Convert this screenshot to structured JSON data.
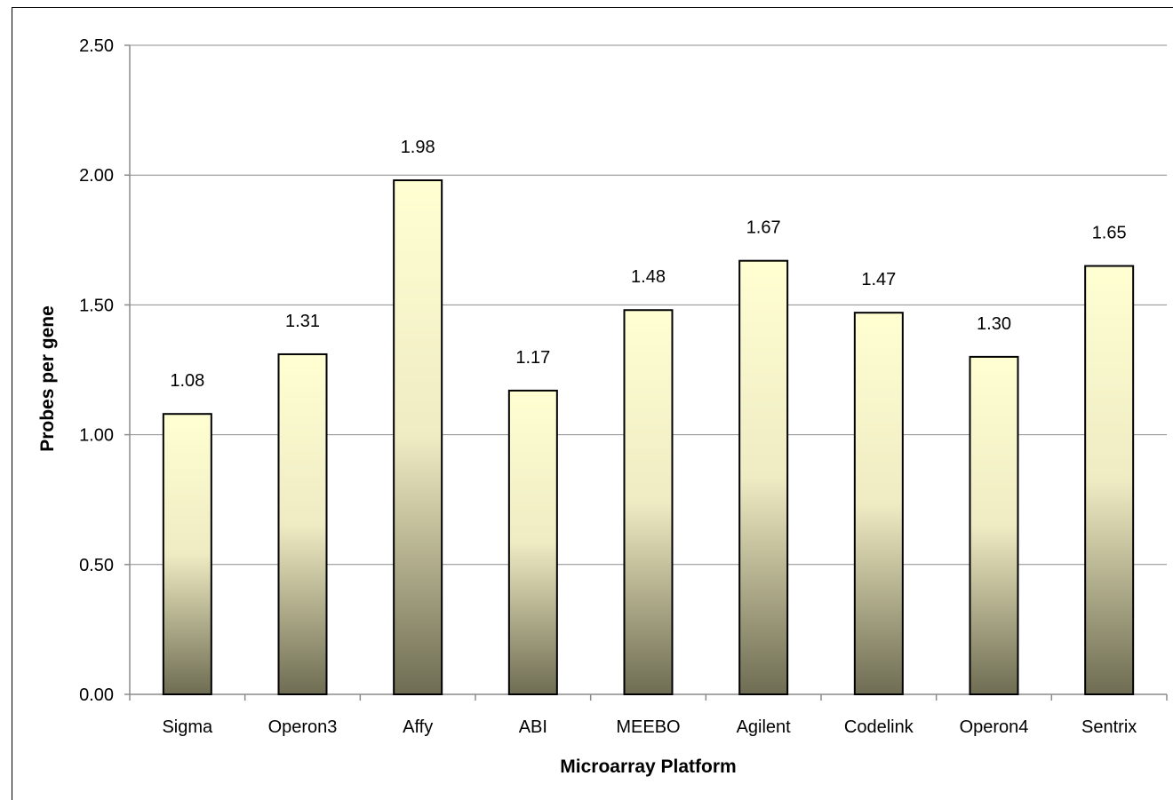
{
  "chart_data": {
    "type": "bar",
    "title": "",
    "xlabel": "Microarray Platform",
    "ylabel": "Probes per gene",
    "categories": [
      "Sigma",
      "Operon3",
      "Affy",
      "ABI",
      "MEEBO",
      "Agilent",
      "Codelink",
      "Operon4",
      "Sentrix"
    ],
    "values": [
      1.08,
      1.31,
      1.98,
      1.17,
      1.48,
      1.67,
      1.47,
      1.3,
      1.65
    ],
    "data_labels": [
      "1.08",
      "1.31",
      "1.98",
      "1.17",
      "1.48",
      "1.67",
      "1.47",
      "1.30",
      "1.65"
    ],
    "ylim": [
      0,
      2.5
    ],
    "yticks": [
      0,
      0.5,
      1.0,
      1.5,
      2.0,
      2.5
    ],
    "ytick_labels": [
      "0.00",
      "0.50",
      "1.00",
      "1.50",
      "2.00",
      "2.50"
    ],
    "grid": true,
    "legend": "none",
    "colors": {
      "bar_top": "#FFFFD2",
      "bar_mid": "#EFEBC3",
      "bar_bottom": "#6E6C52",
      "bar_stroke": "#000000",
      "grid": "#8C8C8C",
      "axis": "#8C8C8C"
    }
  }
}
